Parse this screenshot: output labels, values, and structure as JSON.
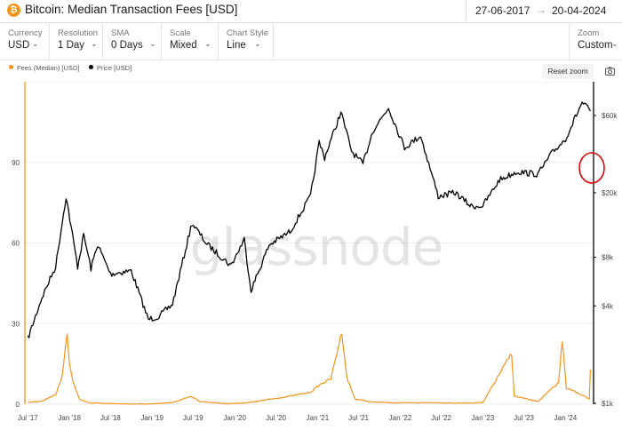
{
  "header": {
    "icon": "bitcoin-icon",
    "title": "Bitcoin: Median Transaction Fees [USD]",
    "date_start": "27-06-2017",
    "date_arrow": "→",
    "date_end": "20-04-2024"
  },
  "controls": [
    {
      "label": "Currency",
      "value": "USD"
    },
    {
      "label": "Resolution",
      "value": "1 Day"
    },
    {
      "label": "SMA",
      "value": "0 Days"
    },
    {
      "label": "Scale",
      "value": "Mixed"
    },
    {
      "label": "Chart Style",
      "value": "Line"
    }
  ],
  "zoom": {
    "label": "Zoom",
    "value": "Custom"
  },
  "toolbar": {
    "reset_zoom": "Reset zoom",
    "camera_icon": "camera-icon"
  },
  "watermark": "glassnode",
  "colors": {
    "fees": "#f7931a",
    "price": "#000000",
    "annotation": "#e00000"
  },
  "chart_data": {
    "type": "line",
    "title": "Bitcoin: Median Transaction Fees [USD]",
    "x_ticks": [
      "Jul '17",
      "Jan '18",
      "Jul '18",
      "Jan '19",
      "Jul '19",
      "Jan '20",
      "Jul '20",
      "Jan '21",
      "Jul '21",
      "Jan '22",
      "Jul '22",
      "Jan '23",
      "Jul '23",
      "Jan '24"
    ],
    "y_left": {
      "ticks": [
        0,
        30,
        60,
        90
      ],
      "range": [
        0,
        120
      ],
      "scale": "linear"
    },
    "y_right": {
      "ticks": [
        "$1k",
        "$4k",
        "$8k",
        "$20k",
        "$60k"
      ],
      "scale": "log"
    },
    "legend": {
      "placement": "top-left"
    },
    "series": [
      {
        "name": "Fees (Median) [USD]",
        "axis": "left",
        "points": [
          [
            "2017-07-01",
            0.6
          ],
          [
            "2017-09-01",
            1.2
          ],
          [
            "2017-11-01",
            3.5
          ],
          [
            "2017-12-01",
            11
          ],
          [
            "2017-12-22",
            27
          ],
          [
            "2018-01-01",
            15
          ],
          [
            "2018-01-15",
            9
          ],
          [
            "2018-02-15",
            1.8
          ],
          [
            "2018-04-01",
            0.5
          ],
          [
            "2018-09-01",
            0.1
          ],
          [
            "2019-01-01",
            0.1
          ],
          [
            "2019-04-01",
            0.6
          ],
          [
            "2019-06-20",
            3.0
          ],
          [
            "2019-08-01",
            1.0
          ],
          [
            "2019-12-01",
            0.2
          ],
          [
            "2020-03-01",
            0.6
          ],
          [
            "2020-06-01",
            1.8
          ],
          [
            "2020-09-01",
            3.0
          ],
          [
            "2020-12-01",
            4.5
          ],
          [
            "2021-01-15",
            7.5
          ],
          [
            "2021-03-01",
            9.5
          ],
          [
            "2021-04-18",
            27
          ],
          [
            "2021-05-10",
            10
          ],
          [
            "2021-06-15",
            2.0
          ],
          [
            "2021-09-01",
            0.8
          ],
          [
            "2022-01-01",
            0.5
          ],
          [
            "2022-06-01",
            0.6
          ],
          [
            "2022-10-01",
            0.4
          ],
          [
            "2023-01-01",
            0.6
          ],
          [
            "2023-05-08",
            19
          ],
          [
            "2023-05-20",
            3.0
          ],
          [
            "2023-09-01",
            1.0
          ],
          [
            "2023-12-01",
            8.0
          ],
          [
            "2023-12-18",
            24
          ],
          [
            "2024-01-05",
            6.0
          ],
          [
            "2024-03-01",
            4.0
          ],
          [
            "2024-04-15",
            2.0
          ],
          [
            "2024-04-20",
            13
          ]
        ]
      },
      {
        "name": "Price [USD]",
        "axis": "right",
        "points": [
          [
            "2017-07-01",
            2500
          ],
          [
            "2017-09-01",
            4500
          ],
          [
            "2017-11-01",
            7000
          ],
          [
            "2017-12-17",
            19000
          ],
          [
            "2018-02-06",
            7000
          ],
          [
            "2018-03-05",
            11000
          ],
          [
            "2018-04-06",
            6800
          ],
          [
            "2018-05-05",
            9600
          ],
          [
            "2018-07-01",
            6300
          ],
          [
            "2018-10-01",
            6600
          ],
          [
            "2018-12-15",
            3300
          ],
          [
            "2019-02-01",
            3450
          ],
          [
            "2019-04-01",
            4100
          ],
          [
            "2019-06-26",
            13000
          ],
          [
            "2019-09-01",
            9600
          ],
          [
            "2019-12-15",
            7100
          ],
          [
            "2020-02-12",
            10300
          ],
          [
            "2020-03-13",
            5000
          ],
          [
            "2020-06-01",
            9500
          ],
          [
            "2020-09-01",
            11500
          ],
          [
            "2020-12-01",
            19000
          ],
          [
            "2021-01-08",
            41000
          ],
          [
            "2021-02-01",
            33000
          ],
          [
            "2021-04-14",
            63000
          ],
          [
            "2021-06-01",
            36000
          ],
          [
            "2021-07-20",
            30000
          ],
          [
            "2021-09-01",
            48000
          ],
          [
            "2021-11-10",
            67000
          ],
          [
            "2022-01-20",
            38000
          ],
          [
            "2022-04-01",
            45000
          ],
          [
            "2022-06-18",
            19000
          ],
          [
            "2022-09-01",
            20000
          ],
          [
            "2022-11-10",
            16500
          ],
          [
            "2023-01-01",
            16600
          ],
          [
            "2023-03-15",
            24000
          ],
          [
            "2023-06-01",
            27000
          ],
          [
            "2023-09-01",
            26000
          ],
          [
            "2023-11-01",
            35000
          ],
          [
            "2024-01-01",
            43000
          ],
          [
            "2024-03-14",
            72000
          ],
          [
            "2024-04-20",
            64000
          ]
        ]
      }
    ]
  }
}
